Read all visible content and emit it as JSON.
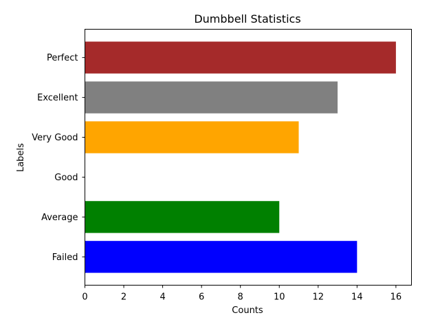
{
  "chart_data": {
    "type": "bar",
    "orientation": "horizontal",
    "title": "Dumbbell Statistics",
    "xlabel": "Counts",
    "ylabel": "Labels",
    "categories": [
      "Failed",
      "Average",
      "Good",
      "Very Good",
      "Excellent",
      "Perfect"
    ],
    "values": [
      14,
      10,
      0,
      11,
      13,
      16
    ],
    "colors": [
      "#0000ff",
      "#008000",
      "#ffffff",
      "#ffa500",
      "#808080",
      "#a52a2a"
    ],
    "xlim": [
      0,
      16.8
    ],
    "xticks": [
      0,
      2,
      4,
      6,
      8,
      10,
      12,
      14,
      16
    ],
    "grid": false,
    "legend": "none"
  }
}
